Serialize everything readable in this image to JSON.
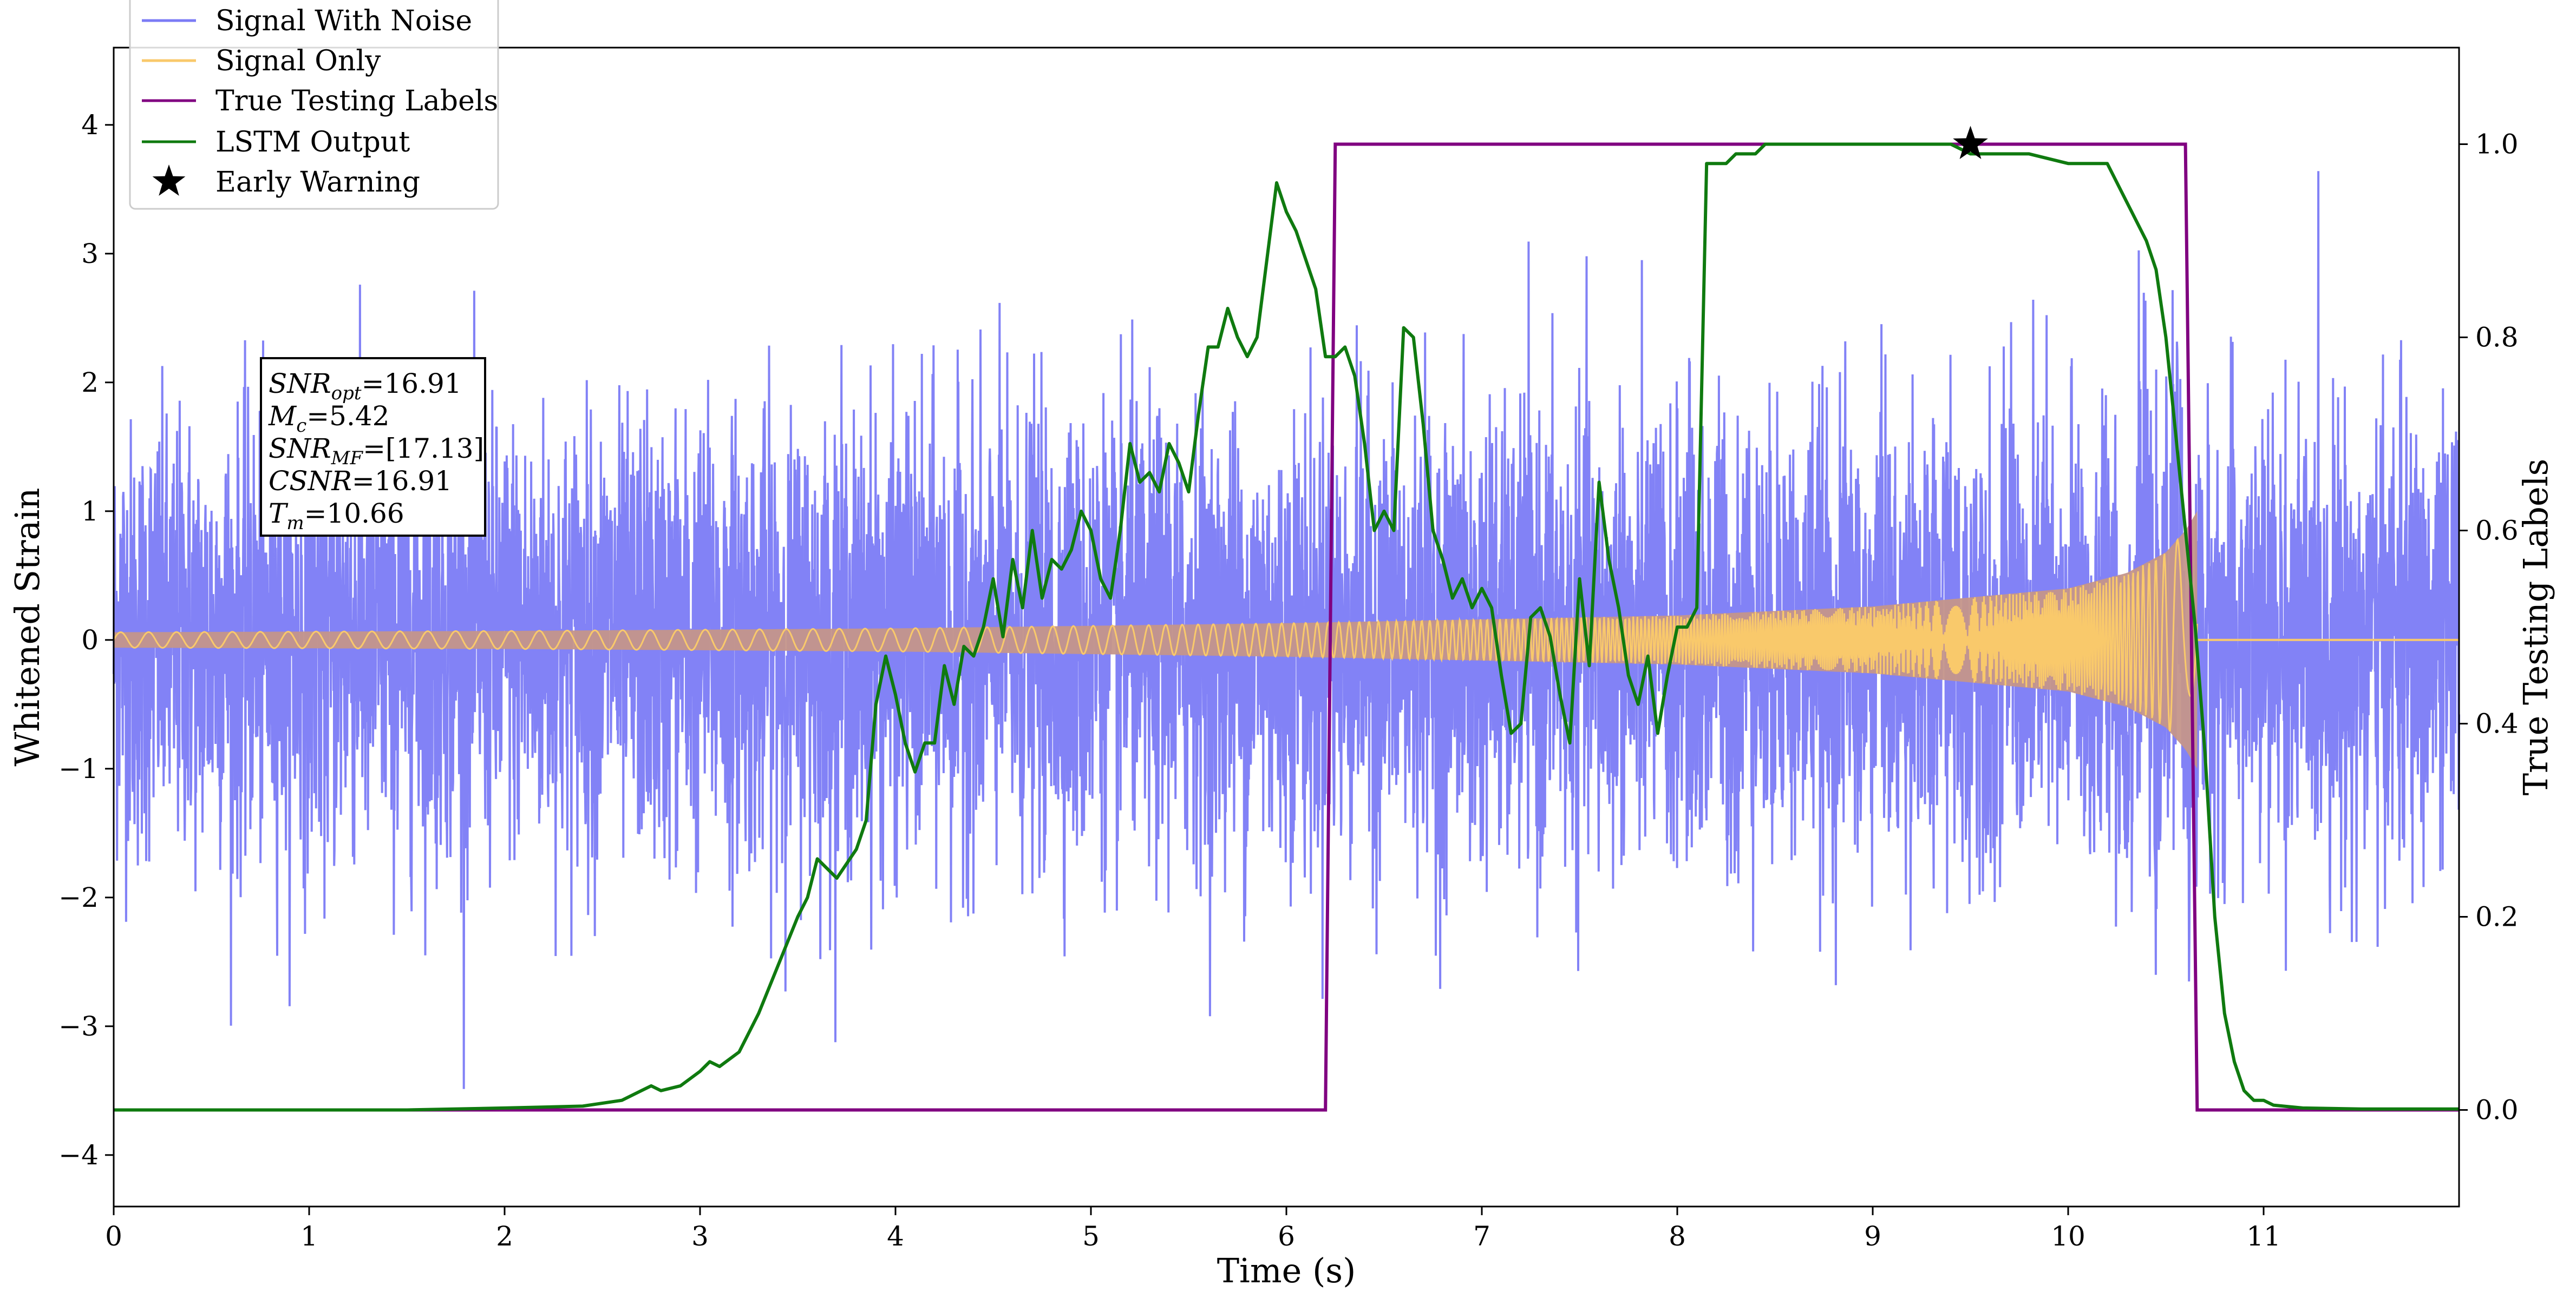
{
  "chart_data": {
    "type": "line",
    "x_axis": {
      "label": "Time (s)",
      "range": [
        0,
        12
      ],
      "ticks": [
        0,
        1,
        2,
        3,
        4,
        5,
        6,
        7,
        8,
        9,
        10,
        11
      ],
      "tick_labels": [
        "0",
        "1",
        "2",
        "3",
        "4",
        "5",
        "6",
        "7",
        "8",
        "9",
        "10",
        "11"
      ]
    },
    "y_axis_left": {
      "label": "Whitened Strain",
      "range": [
        -4.4,
        4.6
      ],
      "ticks": [
        -4,
        -3,
        -2,
        -1,
        0,
        1,
        2,
        3,
        4
      ],
      "tick_labels": [
        "−4",
        "−3",
        "−2",
        "−1",
        "0",
        "1",
        "2",
        "3",
        "4"
      ]
    },
    "y_axis_right": {
      "label": "True Testing Labels",
      "range": [
        -0.1,
        1.1
      ],
      "ticks": [
        0.0,
        0.2,
        0.4,
        0.6,
        0.8,
        1.0
      ],
      "tick_labels": [
        "0.0",
        "0.2",
        "0.4",
        "0.6",
        "0.8",
        "1.0"
      ]
    },
    "grid": false,
    "legend": {
      "placement": "top-left",
      "entries": [
        {
          "label": "Signal With Noise",
          "color": "#7b7bf5",
          "marker": "line"
        },
        {
          "label": "Signal Only",
          "color": "#f9c96b",
          "marker": "line"
        },
        {
          "label": "True Testing Labels",
          "color": "#800080",
          "marker": "line"
        },
        {
          "label": "LSTM Output",
          "color": "#0f7a0f",
          "marker": "line"
        },
        {
          "label": "Early Warning",
          "color": "#000000",
          "marker": "star"
        }
      ]
    },
    "annotation_box": {
      "lines": [
        "SNRopt=16.91",
        "Mc=5.42",
        "SNRMF=[17.13]",
        "CSNR=16.91",
        "Tm=10.66"
      ]
    },
    "series": [
      {
        "name": "Signal With Noise",
        "axis": "left",
        "color": "#7b7bf5",
        "x_range": [
          0,
          12
        ],
        "noise_sigma": 0.85,
        "typical_range": [
          -2.5,
          2.5
        ]
      },
      {
        "name": "Signal Only",
        "axis": "left",
        "color": "#f9c96b",
        "envelope": {
          "x": [
            0,
            2,
            4,
            6,
            8,
            9,
            10,
            10.3,
            10.5,
            10.6,
            10.66
          ],
          "amplitude": [
            0.06,
            0.07,
            0.09,
            0.13,
            0.19,
            0.26,
            0.4,
            0.52,
            0.68,
            0.85,
            1.0
          ]
        },
        "zero_after": 10.66
      },
      {
        "name": "True Testing Labels",
        "axis": "right",
        "color": "#800080",
        "x": [
          0,
          6.2,
          6.25,
          10.6,
          10.66,
          12
        ],
        "y": [
          0,
          0,
          1,
          1,
          0,
          0
        ]
      },
      {
        "name": "LSTM Output",
        "axis": "right",
        "color": "#0f7a0f",
        "x": [
          0,
          0.5,
          1.0,
          1.5,
          2.0,
          2.4,
          2.6,
          2.7,
          2.75,
          2.8,
          2.9,
          3.0,
          3.05,
          3.1,
          3.2,
          3.3,
          3.4,
          3.5,
          3.55,
          3.6,
          3.7,
          3.8,
          3.85,
          3.9,
          3.95,
          4.0,
          4.05,
          4.1,
          4.15,
          4.2,
          4.25,
          4.3,
          4.35,
          4.4,
          4.45,
          4.5,
          4.55,
          4.6,
          4.65,
          4.7,
          4.75,
          4.8,
          4.85,
          4.9,
          4.95,
          5.0,
          5.05,
          5.1,
          5.15,
          5.2,
          5.25,
          5.3,
          5.35,
          5.4,
          5.45,
          5.5,
          5.55,
          5.6,
          5.65,
          5.7,
          5.75,
          5.8,
          5.85,
          5.9,
          5.95,
          6.0,
          6.05,
          6.1,
          6.15,
          6.2,
          6.25,
          6.3,
          6.35,
          6.4,
          6.45,
          6.5,
          6.55,
          6.6,
          6.65,
          6.7,
          6.75,
          6.8,
          6.85,
          6.9,
          6.95,
          7.0,
          7.05,
          7.1,
          7.15,
          7.2,
          7.25,
          7.3,
          7.35,
          7.4,
          7.45,
          7.5,
          7.55,
          7.6,
          7.65,
          7.7,
          7.75,
          7.8,
          7.85,
          7.9,
          7.95,
          8.0,
          8.05,
          8.1,
          8.15,
          8.2,
          8.25,
          8.3,
          8.35,
          8.4,
          8.45,
          8.5,
          8.6,
          8.7,
          8.8,
          8.9,
          9.0,
          9.2,
          9.4,
          9.5,
          9.6,
          9.8,
          10.0,
          10.2,
          10.3,
          10.4,
          10.45,
          10.5,
          10.55,
          10.6,
          10.65,
          10.7,
          10.75,
          10.8,
          10.85,
          10.9,
          10.95,
          11.0,
          11.05,
          11.1,
          11.2,
          11.5,
          12.0
        ],
        "y": [
          0,
          0,
          0,
          0,
          0.002,
          0.004,
          0.01,
          0.02,
          0.025,
          0.02,
          0.025,
          0.04,
          0.05,
          0.045,
          0.06,
          0.1,
          0.15,
          0.2,
          0.22,
          0.26,
          0.24,
          0.27,
          0.3,
          0.42,
          0.47,
          0.43,
          0.38,
          0.35,
          0.38,
          0.38,
          0.46,
          0.42,
          0.48,
          0.47,
          0.5,
          0.55,
          0.49,
          0.57,
          0.52,
          0.6,
          0.53,
          0.57,
          0.56,
          0.58,
          0.62,
          0.6,
          0.55,
          0.53,
          0.6,
          0.69,
          0.65,
          0.66,
          0.64,
          0.69,
          0.67,
          0.64,
          0.72,
          0.79,
          0.79,
          0.83,
          0.8,
          0.78,
          0.8,
          0.88,
          0.96,
          0.93,
          0.91,
          0.88,
          0.85,
          0.78,
          0.78,
          0.79,
          0.76,
          0.69,
          0.6,
          0.62,
          0.6,
          0.81,
          0.8,
          0.71,
          0.6,
          0.57,
          0.53,
          0.55,
          0.52,
          0.54,
          0.52,
          0.45,
          0.39,
          0.4,
          0.51,
          0.52,
          0.49,
          0.43,
          0.38,
          0.55,
          0.46,
          0.65,
          0.57,
          0.52,
          0.45,
          0.42,
          0.47,
          0.39,
          0.45,
          0.5,
          0.5,
          0.52,
          0.98,
          0.98,
          0.98,
          0.99,
          0.99,
          0.99,
          1.0,
          1.0,
          1.0,
          1.0,
          1.0,
          1.0,
          1.0,
          1.0,
          1.0,
          0.99,
          0.99,
          0.99,
          0.98,
          0.98,
          0.94,
          0.9,
          0.87,
          0.8,
          0.7,
          0.6,
          0.5,
          0.37,
          0.2,
          0.1,
          0.05,
          0.02,
          0.01,
          0.01,
          0.005,
          0.004,
          0.002,
          0.001,
          0.001
        ]
      },
      {
        "name": "Early Warning",
        "axis": "right",
        "color": "#000000",
        "marker": "star",
        "x": [
          9.5
        ],
        "y": [
          1.0
        ]
      }
    ]
  }
}
